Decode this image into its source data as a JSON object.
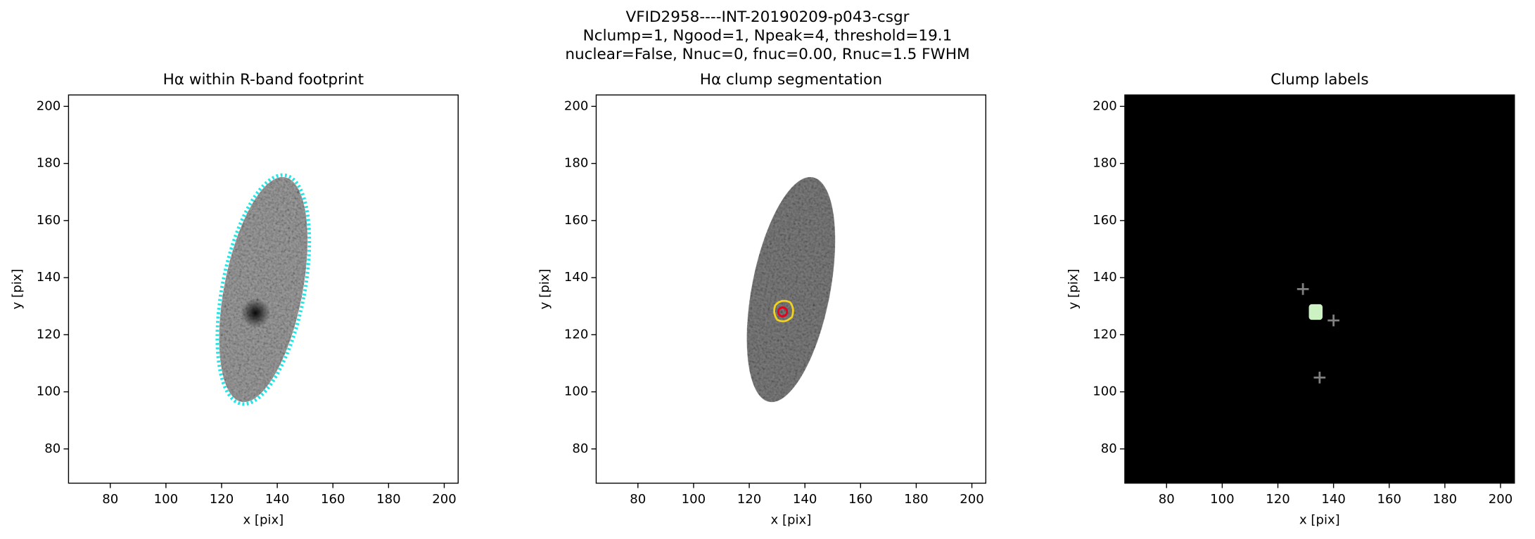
{
  "title": [
    "VFID2958----INT-20190209-p043-csgr",
    "Nclump=1, Ngood=1, Npeak=4, threshold=19.1",
    "nuclear=False, Nnuc=0, fnuc=0.00, Rnuc=1.5 FWHM"
  ],
  "chart_data": [
    {
      "type": "image",
      "title": "Hα within R-band footprint",
      "xlabel": "x [pix]",
      "ylabel": "y [pix]",
      "xlim": [
        65,
        205
      ],
      "ylim": [
        68,
        204
      ],
      "xticks": [
        80,
        100,
        120,
        140,
        160,
        180,
        200
      ],
      "yticks": [
        80,
        100,
        120,
        140,
        160,
        180,
        200
      ],
      "background": "#ffffff"
    },
    {
      "type": "image",
      "title": "Hα clump segmentation",
      "xlabel": "x [pix]",
      "ylabel": "y [pix]",
      "xlim": [
        65,
        205
      ],
      "ylim": [
        68,
        204
      ],
      "xticks": [
        80,
        100,
        120,
        140,
        160,
        180,
        200
      ],
      "yticks": [
        80,
        100,
        120,
        140,
        160,
        180,
        200
      ],
      "background": "#ffffff",
      "points": {
        "x": [
          132
        ],
        "y": [
          128
        ],
        "color": "#e8001c",
        "marker": "o"
      }
    },
    {
      "type": "image",
      "title": "Clump labels",
      "xlabel": "x [pix]",
      "ylabel": "y [pix]",
      "xlim": [
        65,
        205
      ],
      "ylim": [
        68,
        204
      ],
      "xticks": [
        80,
        100,
        120,
        140,
        160,
        180,
        200
      ],
      "yticks": [
        80,
        100,
        120,
        140,
        160,
        180,
        200
      ],
      "background": "#000000",
      "points": {
        "x": [
          129,
          140,
          135
        ],
        "y": [
          136,
          125,
          105
        ],
        "color": "#808080",
        "marker": "+"
      }
    }
  ]
}
